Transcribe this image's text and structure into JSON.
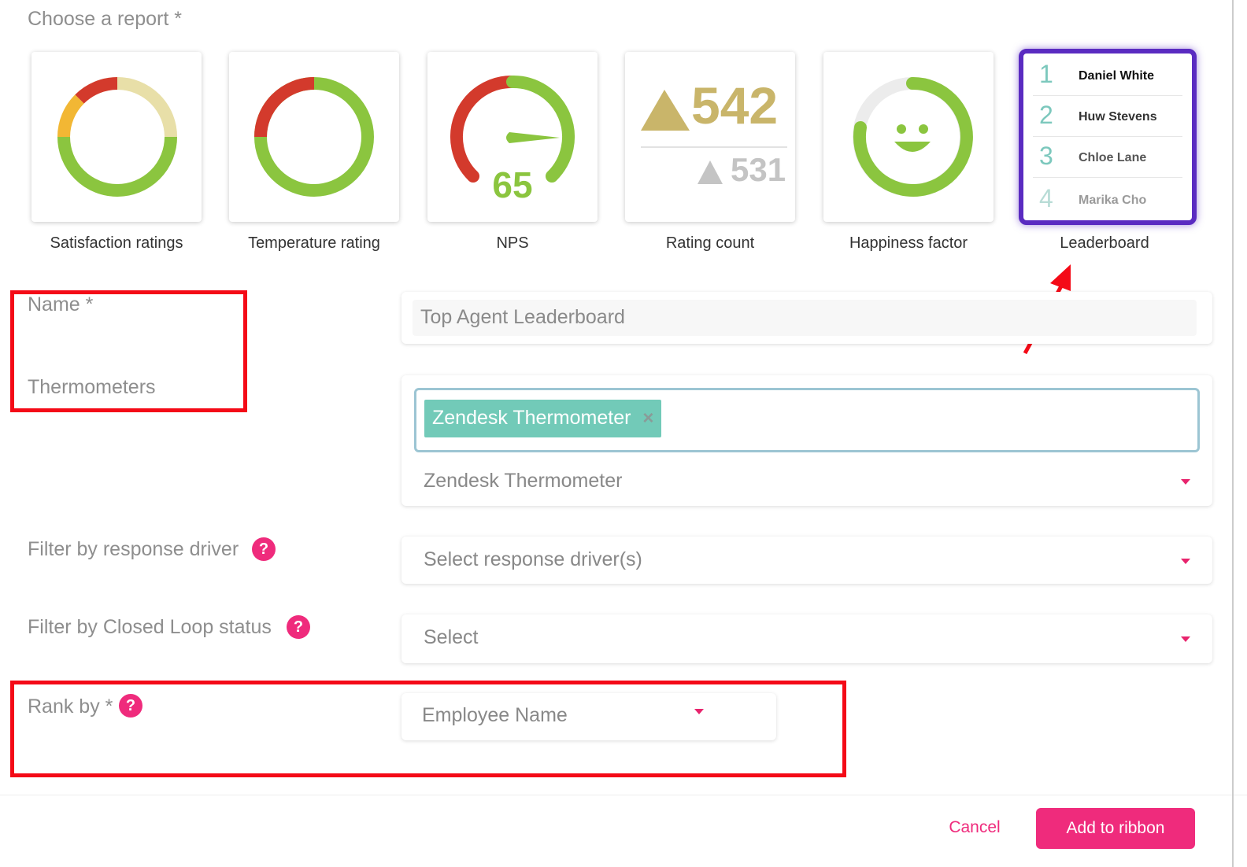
{
  "section_title": "Choose a report *",
  "reports": [
    {
      "caption": "Satisfaction ratings"
    },
    {
      "caption": "Temperature rating"
    },
    {
      "caption": "NPS",
      "score": "65"
    },
    {
      "caption": "Rating count",
      "primary": "542",
      "secondary": "531"
    },
    {
      "caption": "Happiness factor"
    },
    {
      "caption": "Leaderboard",
      "selected": true,
      "entries": [
        {
          "rank": "1",
          "name": "Daniel White"
        },
        {
          "rank": "2",
          "name": "Huw Stevens"
        },
        {
          "rank": "3",
          "name": "Chloe Lane"
        },
        {
          "rank": "4",
          "name": "Marika Cho"
        }
      ]
    }
  ],
  "form": {
    "name": {
      "label": "Name *",
      "value": "Top Agent Leaderboard"
    },
    "thermometers": {
      "label": "Thermometers",
      "tag": "Zendesk Thermometer",
      "selected": "Zendesk Thermometer"
    },
    "response_driver": {
      "label": "Filter by response driver",
      "placeholder": "Select response driver(s)"
    },
    "closed_loop": {
      "label": "Filter by Closed Loop status",
      "placeholder": "Select"
    },
    "rank_by": {
      "label": "Rank by *",
      "value": "Employee Name"
    },
    "help_symbol": "?",
    "tag_remove": "×"
  },
  "footer": {
    "cancel": "Cancel",
    "submit": "Add to ribbon"
  },
  "colors": {
    "accent": "#ef2b7c",
    "selected_border": "#5a2bc1",
    "annotation": "#f40a17",
    "tag_bg": "#72cab8",
    "green": "#8bc53f",
    "red": "#d33a2c"
  }
}
